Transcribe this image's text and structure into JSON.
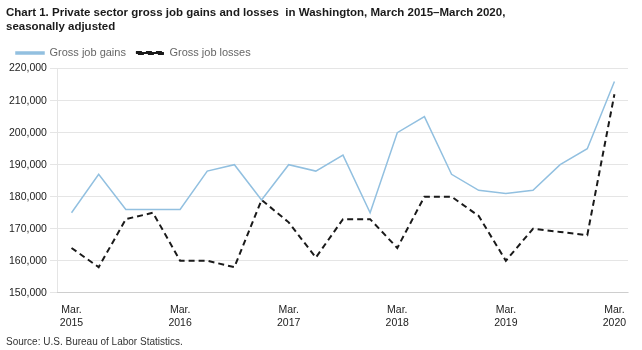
{
  "chart_data": {
    "type": "line",
    "title": "Chart 1. Private sector gross job gains and losses  in Washington, March 2015–March 2020,\nseasonally adjusted",
    "source": "Source: U.S. Bureau of Labor Statistics.",
    "categories": [
      "Mar.\n2015",
      null,
      null,
      null,
      "Mar.\n2016",
      null,
      null,
      null,
      "Mar.\n2017",
      null,
      null,
      null,
      "Mar.\n2018",
      null,
      null,
      null,
      "Mar.\n2019",
      null,
      null,
      null,
      "Mar.\n2020"
    ],
    "series": [
      {
        "name": "Gross job gains",
        "color": "#92c0e0",
        "line_style": "solid",
        "values": [
          175000,
          187000,
          176000,
          176000,
          176000,
          188000,
          190000,
          179000,
          190000,
          188000,
          193000,
          175000,
          200000,
          205000,
          187000,
          182000,
          181000,
          182000,
          190000,
          195000,
          216000
        ]
      },
      {
        "name": "Gross job losses",
        "color": "#1a1a1a",
        "line_style": "dashed",
        "values": [
          164000,
          158000,
          173000,
          175000,
          160000,
          160000,
          158000,
          179000,
          172000,
          161000,
          173000,
          173000,
          164000,
          180000,
          180000,
          174000,
          160000,
          170000,
          169000,
          168000,
          212000
        ]
      }
    ],
    "ylim": [
      150000,
      220000
    ],
    "yticks": [
      {
        "value": 150000,
        "label": "150,000"
      },
      {
        "value": 160000,
        "label": "160,000"
      },
      {
        "value": 170000,
        "label": "170,000"
      },
      {
        "value": 180000,
        "label": "180,000"
      },
      {
        "value": 190000,
        "label": "190,000"
      },
      {
        "value": 200000,
        "label": "200,000"
      },
      {
        "value": 210000,
        "label": "210,000"
      },
      {
        "value": 220000,
        "label": "220,000"
      }
    ],
    "grid": true,
    "legend": "upper left"
  }
}
